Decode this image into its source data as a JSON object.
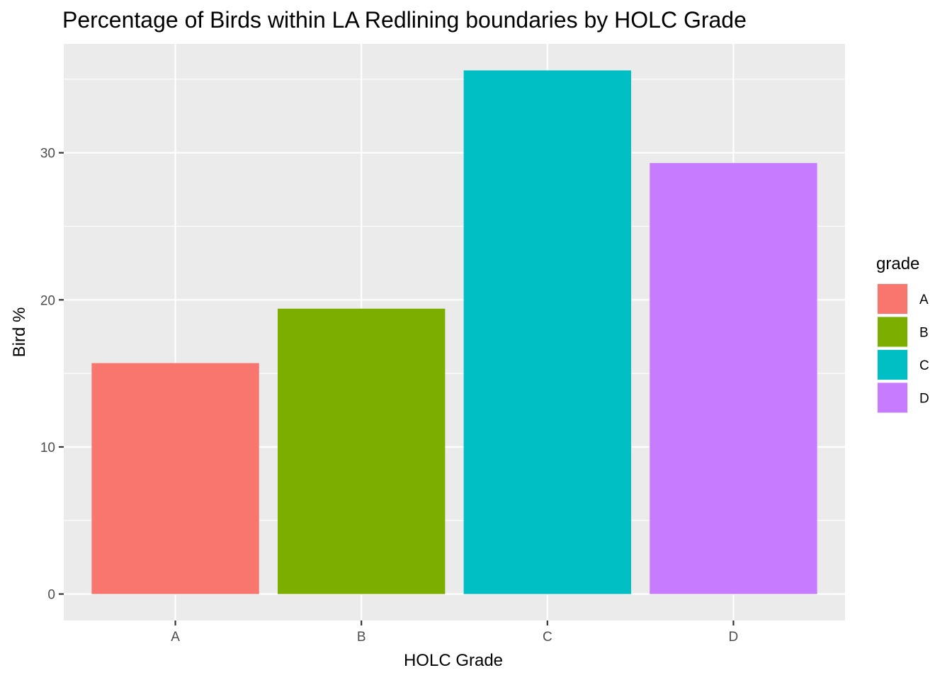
{
  "chart_data": {
    "type": "bar",
    "title": "Percentage of Birds within LA Redlining boundaries by HOLC Grade",
    "xlabel": "HOLC Grade",
    "ylabel": "Bird %",
    "categories": [
      "A",
      "B",
      "C",
      "D"
    ],
    "values": [
      15.7,
      19.4,
      35.6,
      29.3
    ],
    "colors": [
      "#F8766D",
      "#7CAE00",
      "#00BFC4",
      "#C77CFF"
    ],
    "ylim": [
      -1.8,
      37.4
    ],
    "yticks": [
      0,
      10,
      20,
      30
    ],
    "ytick_labels": [
      "0",
      "10",
      "20",
      "30"
    ],
    "grid": true,
    "legend": {
      "title": "grade",
      "placement": "right",
      "entries": [
        "A",
        "B",
        "C",
        "D"
      ]
    }
  }
}
